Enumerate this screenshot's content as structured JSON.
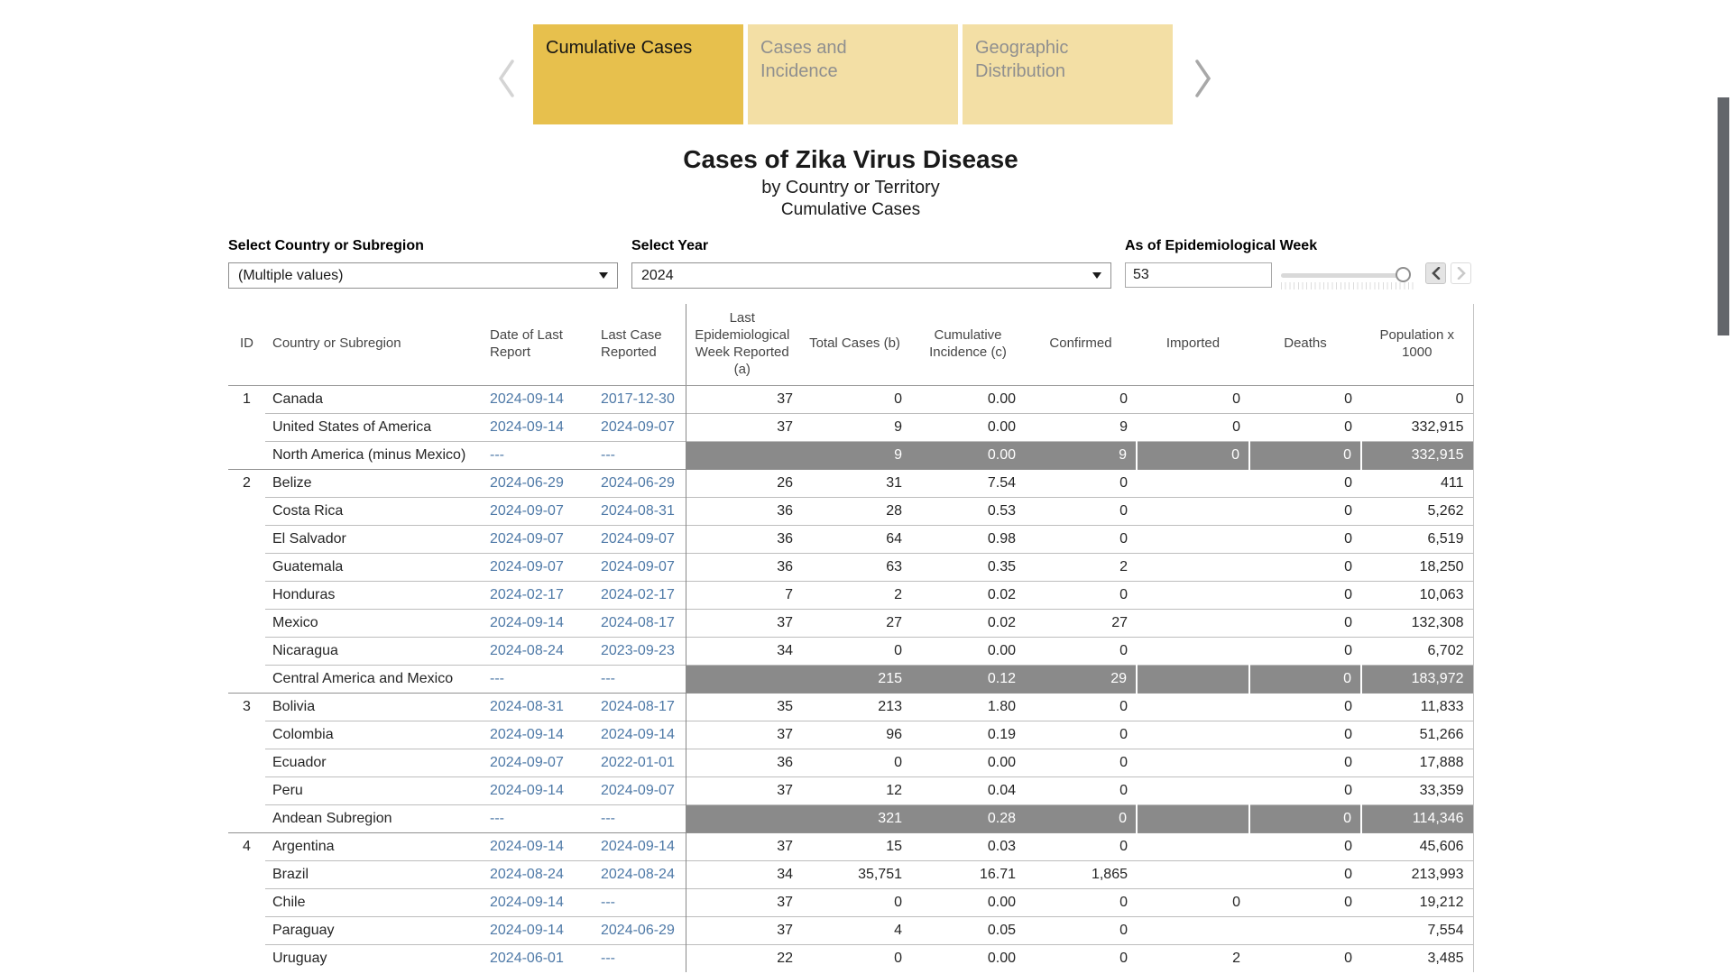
{
  "tabs": {
    "items": [
      {
        "label": "Cumulative Cases",
        "active": true
      },
      {
        "label": "Cases and Incidence",
        "active": false
      },
      {
        "label": "Geographic Distribution",
        "active": false
      }
    ]
  },
  "title": {
    "line1": "Cases of Zika Virus Disease",
    "line2": "by Country or Territory",
    "line3": "Cumulative Cases"
  },
  "filters": {
    "country": {
      "label": "Select Country or Subregion",
      "value": "(Multiple values)"
    },
    "year": {
      "label": "Select Year",
      "value": "2024"
    },
    "week": {
      "label": "As of Epidemiological Week",
      "value": "53"
    }
  },
  "colors": {
    "active_tab": "#e7c04d",
    "inactive_tab": "#f3dfa5",
    "link_blue": "#4e79a7",
    "subtotal_gray": "#8a8a8a",
    "scrollbar_thumb": "#63666b"
  },
  "table": {
    "columns": [
      "ID",
      "Country or Subregion",
      "Date of Last Report",
      "Last Case Reported",
      "Last Epidemiological Week Reported (a)",
      "Total Cases (b)",
      "Cumulative Incidence (c)",
      "Confirmed",
      "Imported",
      "Deaths",
      "Population x 1000"
    ],
    "rows": [
      {
        "id": "1",
        "country": "Canada",
        "date_of_last_report": "2024-09-14",
        "last_case_reported": "2017-12-30",
        "week": "37",
        "total": "0",
        "incidence": "0.00",
        "confirmed": "0",
        "imported": "0",
        "deaths": "0",
        "population": "0",
        "type": "country",
        "group_start": true
      },
      {
        "id": "",
        "country": "United States of America",
        "date_of_last_report": "2024-09-14",
        "last_case_reported": "2024-09-07",
        "week": "37",
        "total": "9",
        "incidence": "0.00",
        "confirmed": "9",
        "imported": "0",
        "deaths": "0",
        "population": "332,915",
        "type": "country",
        "group_start": false
      },
      {
        "id": "",
        "country": "North America (minus Mexico)",
        "date_of_last_report": "---",
        "last_case_reported": "---",
        "week": "",
        "total": "9",
        "incidence": "0.00",
        "confirmed": "9",
        "imported": "0",
        "deaths": "0",
        "population": "332,915",
        "type": "subtotal",
        "group_start": false
      },
      {
        "id": "2",
        "country": "Belize",
        "date_of_last_report": "2024-06-29",
        "last_case_reported": "2024-06-29",
        "week": "26",
        "total": "31",
        "incidence": "7.54",
        "confirmed": "0",
        "imported": "",
        "deaths": "0",
        "population": "411",
        "type": "country",
        "group_start": true
      },
      {
        "id": "",
        "country": "Costa Rica",
        "date_of_last_report": "2024-09-07",
        "last_case_reported": "2024-08-31",
        "week": "36",
        "total": "28",
        "incidence": "0.53",
        "confirmed": "0",
        "imported": "",
        "deaths": "0",
        "population": "5,262",
        "type": "country",
        "group_start": false
      },
      {
        "id": "",
        "country": "El Salvador",
        "date_of_last_report": "2024-09-07",
        "last_case_reported": "2024-09-07",
        "week": "36",
        "total": "64",
        "incidence": "0.98",
        "confirmed": "0",
        "imported": "",
        "deaths": "0",
        "population": "6,519",
        "type": "country",
        "group_start": false
      },
      {
        "id": "",
        "country": "Guatemala",
        "date_of_last_report": "2024-09-07",
        "last_case_reported": "2024-09-07",
        "week": "36",
        "total": "63",
        "incidence": "0.35",
        "confirmed": "2",
        "imported": "",
        "deaths": "0",
        "population": "18,250",
        "type": "country",
        "group_start": false
      },
      {
        "id": "",
        "country": "Honduras",
        "date_of_last_report": "2024-02-17",
        "last_case_reported": "2024-02-17",
        "week": "7",
        "total": "2",
        "incidence": "0.02",
        "confirmed": "0",
        "imported": "",
        "deaths": "0",
        "population": "10,063",
        "type": "country",
        "group_start": false
      },
      {
        "id": "",
        "country": "Mexico",
        "date_of_last_report": "2024-09-14",
        "last_case_reported": "2024-08-17",
        "week": "37",
        "total": "27",
        "incidence": "0.02",
        "confirmed": "27",
        "imported": "",
        "deaths": "0",
        "population": "132,308",
        "type": "country",
        "group_start": false
      },
      {
        "id": "",
        "country": "Nicaragua",
        "date_of_last_report": "2024-08-24",
        "last_case_reported": "2023-09-23",
        "week": "34",
        "total": "0",
        "incidence": "0.00",
        "confirmed": "0",
        "imported": "",
        "deaths": "0",
        "population": "6,702",
        "type": "country",
        "group_start": false
      },
      {
        "id": "",
        "country": "Central America and Mexico",
        "date_of_last_report": "---",
        "last_case_reported": "---",
        "week": "",
        "total": "215",
        "incidence": "0.12",
        "confirmed": "29",
        "imported": "",
        "deaths": "0",
        "population": "183,972",
        "type": "subtotal",
        "group_start": false
      },
      {
        "id": "3",
        "country": "Bolivia",
        "date_of_last_report": "2024-08-31",
        "last_case_reported": "2024-08-17",
        "week": "35",
        "total": "213",
        "incidence": "1.80",
        "confirmed": "0",
        "imported": "",
        "deaths": "0",
        "population": "11,833",
        "type": "country",
        "group_start": true
      },
      {
        "id": "",
        "country": "Colombia",
        "date_of_last_report": "2024-09-14",
        "last_case_reported": "2024-09-14",
        "week": "37",
        "total": "96",
        "incidence": "0.19",
        "confirmed": "0",
        "imported": "",
        "deaths": "0",
        "population": "51,266",
        "type": "country",
        "group_start": false
      },
      {
        "id": "",
        "country": "Ecuador",
        "date_of_last_report": "2024-09-07",
        "last_case_reported": "2022-01-01",
        "week": "36",
        "total": "0",
        "incidence": "0.00",
        "confirmed": "0",
        "imported": "",
        "deaths": "0",
        "population": "17,888",
        "type": "country",
        "group_start": false
      },
      {
        "id": "",
        "country": "Peru",
        "date_of_last_report": "2024-09-14",
        "last_case_reported": "2024-09-07",
        "week": "37",
        "total": "12",
        "incidence": "0.04",
        "confirmed": "0",
        "imported": "",
        "deaths": "0",
        "population": "33,359",
        "type": "country",
        "group_start": false
      },
      {
        "id": "",
        "country": "Andean Subregion",
        "date_of_last_report": "---",
        "last_case_reported": "---",
        "week": "",
        "total": "321",
        "incidence": "0.28",
        "confirmed": "0",
        "imported": "",
        "deaths": "0",
        "population": "114,346",
        "type": "subtotal",
        "group_start": false
      },
      {
        "id": "4",
        "country": "Argentina",
        "date_of_last_report": "2024-09-14",
        "last_case_reported": "2024-09-14",
        "week": "37",
        "total": "15",
        "incidence": "0.03",
        "confirmed": "0",
        "imported": "",
        "deaths": "0",
        "population": "45,606",
        "type": "country",
        "group_start": true
      },
      {
        "id": "",
        "country": "Brazil",
        "date_of_last_report": "2024-08-24",
        "last_case_reported": "2024-08-24",
        "week": "34",
        "total": "35,751",
        "incidence": "16.71",
        "confirmed": "1,865",
        "imported": "",
        "deaths": "0",
        "population": "213,993",
        "type": "country",
        "group_start": false
      },
      {
        "id": "",
        "country": "Chile",
        "date_of_last_report": "2024-09-14",
        "last_case_reported": "---",
        "week": "37",
        "total": "0",
        "incidence": "0.00",
        "confirmed": "0",
        "imported": "0",
        "deaths": "0",
        "population": "19,212",
        "type": "country",
        "group_start": false
      },
      {
        "id": "",
        "country": "Paraguay",
        "date_of_last_report": "2024-09-14",
        "last_case_reported": "2024-06-29",
        "week": "37",
        "total": "4",
        "incidence": "0.05",
        "confirmed": "0",
        "imported": "",
        "deaths": "",
        "population": "7,554",
        "type": "country",
        "group_start": false
      },
      {
        "id": "",
        "country": "Uruguay",
        "date_of_last_report": "2024-06-01",
        "last_case_reported": "---",
        "week": "22",
        "total": "0",
        "incidence": "0.00",
        "confirmed": "0",
        "imported": "2",
        "deaths": "0",
        "population": "3,485",
        "type": "country",
        "group_start": false
      }
    ]
  }
}
